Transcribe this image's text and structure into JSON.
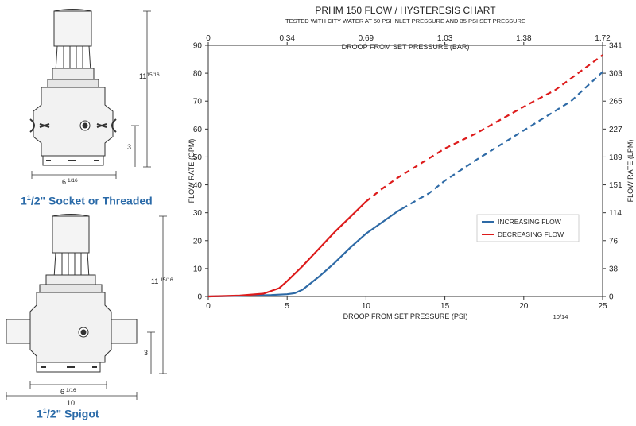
{
  "left_panel": {
    "top_caption_main": "1",
    "top_caption_sup": "1",
    "top_caption_rest": "/2\" Socket or Threaded",
    "bottom_caption_main": "1",
    "bottom_caption_sup": "1",
    "bottom_caption_rest": "/2\" Spigot",
    "dims_top": {
      "height_whole": "11",
      "height_frac": "15/16",
      "side": "3",
      "width_whole": "6",
      "width_frac": "1/16"
    },
    "dims_bottom": {
      "height_whole": "11",
      "height_frac": "15/16",
      "side": "3",
      "width_whole": "6",
      "width_frac": "1/16",
      "overall": "10"
    }
  },
  "chart_data": {
    "type": "line",
    "title": "PRHM 150 FLOW / HYSTERESIS CHART",
    "subtitle": "TESTED WITH CITY WATER AT 50 PSI INLET PRESSURE AND 35 PSI SET PRESSURE",
    "xlabel": "DROOP FROM SET PRESSURE (PSI)",
    "xlabel_top": "DROOP FROM SET PRESSURE (BAR)",
    "ylabel": "FLOW RATE (GPM)",
    "ylabel_right": "FLOW RATE (LPM)",
    "xlim": [
      0,
      25
    ],
    "ylim": [
      0,
      90
    ],
    "x_ticks": [
      "0",
      "5",
      "10",
      "15",
      "20",
      "25"
    ],
    "x_tick_values": [
      0,
      5,
      10,
      15,
      20,
      25
    ],
    "x_top_ticks": [
      "0",
      "0.34",
      "0.69",
      "1.03",
      "1.38",
      "1.72"
    ],
    "y_ticks": [
      "0",
      "10",
      "20",
      "30",
      "40",
      "50",
      "60",
      "70",
      "80",
      "90"
    ],
    "y_tick_values": [
      0,
      10,
      20,
      30,
      40,
      50,
      60,
      70,
      80,
      90
    ],
    "y_right_ticks": [
      "0",
      "38",
      "76",
      "114",
      "151",
      "189",
      "227",
      "265",
      "303",
      "341"
    ],
    "date_code": "10/14",
    "legend_position": "center-right",
    "grid": false,
    "series": [
      {
        "name": "INCREASING FLOW",
        "color": "#2e6aa6",
        "solid": [
          [
            0,
            0
          ],
          [
            2,
            0.2
          ],
          [
            4,
            0.5
          ],
          [
            5,
            0.8
          ],
          [
            5.5,
            1.2
          ],
          [
            6,
            2.5
          ],
          [
            7,
            7
          ],
          [
            8,
            12
          ],
          [
            9,
            17.5
          ],
          [
            10,
            22.5
          ],
          [
            11,
            26.5
          ],
          [
            12,
            30.5
          ],
          [
            12.3,
            31.5
          ]
        ],
        "dashed": [
          [
            12.3,
            31.5
          ],
          [
            14,
            37
          ],
          [
            15,
            41.5
          ],
          [
            17,
            49
          ],
          [
            19,
            56
          ],
          [
            21,
            63
          ],
          [
            23,
            70
          ],
          [
            25,
            80.5
          ]
        ]
      },
      {
        "name": "DECREASING FLOW",
        "color": "#dd1b1b",
        "solid": [
          [
            0,
            0
          ],
          [
            2,
            0.3
          ],
          [
            3.5,
            1.0
          ],
          [
            4.5,
            3.0
          ],
          [
            5,
            5.5
          ],
          [
            6,
            11
          ],
          [
            7,
            17
          ],
          [
            8,
            23
          ],
          [
            9,
            28.5
          ],
          [
            10,
            34
          ]
        ],
        "dashed": [
          [
            10,
            34
          ],
          [
            11,
            38.5
          ],
          [
            12,
            42.5
          ],
          [
            13,
            46
          ],
          [
            15,
            53
          ],
          [
            17,
            58.5
          ],
          [
            20,
            68
          ],
          [
            22,
            74
          ],
          [
            25,
            86.5
          ]
        ]
      }
    ]
  }
}
